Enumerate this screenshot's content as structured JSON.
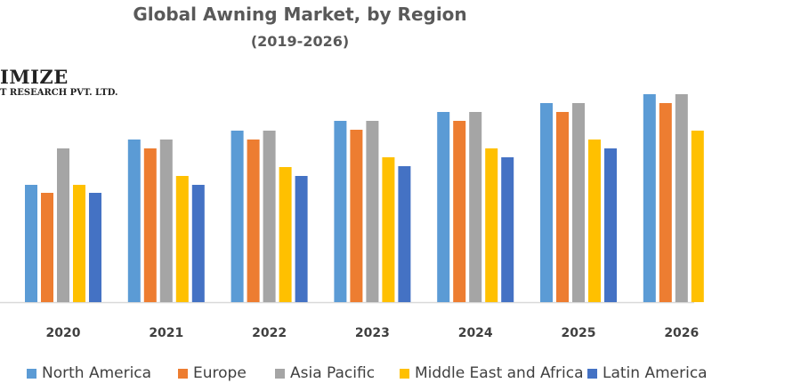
{
  "chart_data": {
    "type": "bar",
    "title": "Global Awning Market, by Region",
    "subtitle": "(2019-2026)",
    "xlabel": "",
    "ylabel": "",
    "ylim": [
      0,
      25
    ],
    "grid": false,
    "legend_position": "bottom",
    "categories": [
      "2020",
      "2021",
      "2022",
      "2023",
      "2024",
      "2025",
      "2026"
    ],
    "series": [
      {
        "name": "North America",
        "color": "#5b9bd5",
        "values": [
          13.2,
          18.3,
          19.3,
          20.4,
          21.4,
          22.4,
          23.4
        ]
      },
      {
        "name": "Europe",
        "color": "#ed7d31",
        "values": [
          12.3,
          17.3,
          18.3,
          19.4,
          20.4,
          21.4,
          22.4
        ]
      },
      {
        "name": "Asia Pacific",
        "color": "#a5a5a5",
        "values": [
          17.3,
          18.3,
          19.3,
          20.4,
          21.4,
          22.4,
          23.4
        ]
      },
      {
        "name": "Middle East and Africa",
        "color": "#ffc000",
        "values": [
          13.2,
          14.2,
          15.2,
          16.3,
          17.3,
          18.3,
          19.3
        ]
      },
      {
        "name": "Latin America",
        "color": "#4472c4",
        "values": [
          12.3,
          13.2,
          14.2,
          15.3,
          16.3,
          17.3,
          null
        ]
      }
    ]
  },
  "logo": {
    "line1": "IMIZE",
    "line2": "T RESEARCH PVT. LTD."
  }
}
